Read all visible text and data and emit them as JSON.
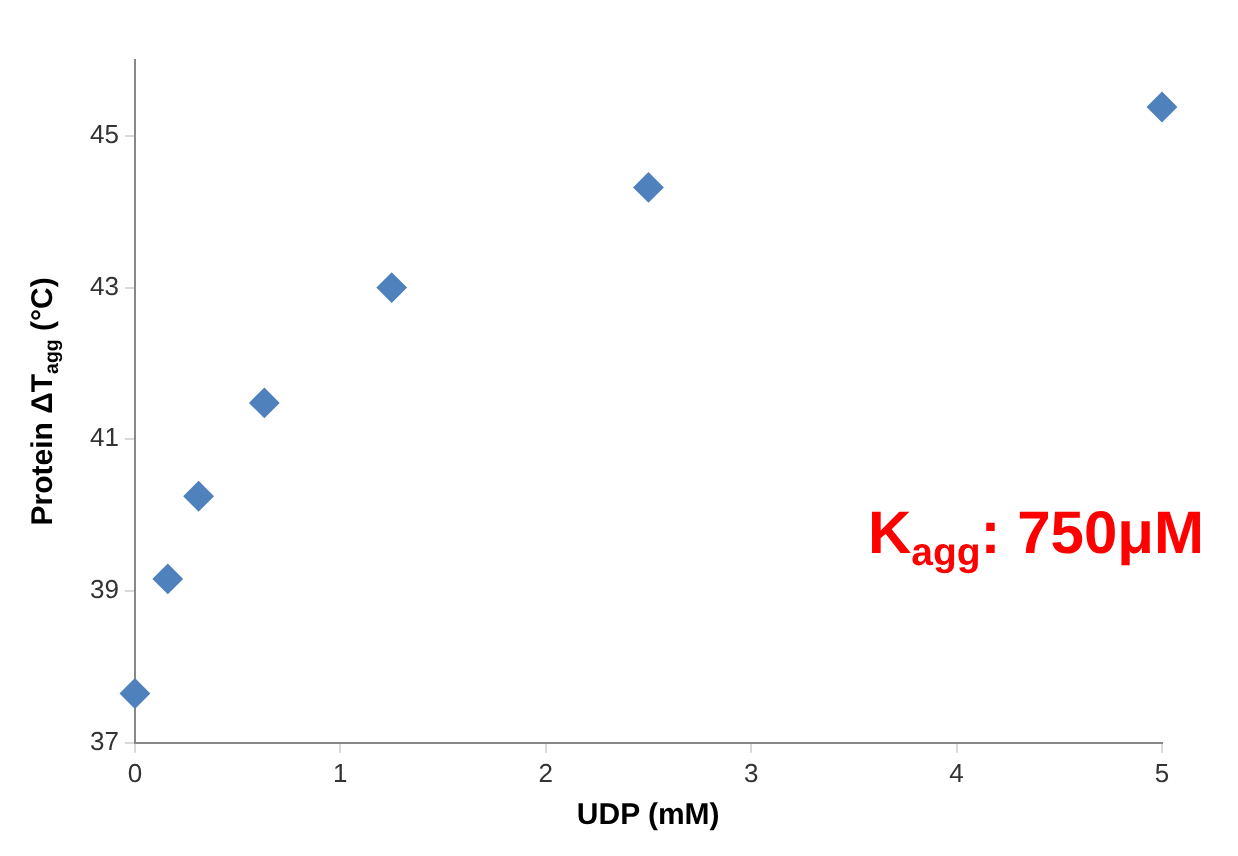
{
  "chart_data": {
    "type": "scatter",
    "xlabel": "UDP (mM)",
    "ylabel": "Protein ΔT$_{agg}$ (°C)",
    "x": [
      0,
      0.16,
      0.31,
      0.63,
      1.25,
      2.5,
      5
    ],
    "series": [
      {
        "color": "#4f81bd",
        "values": [
          37.65,
          39.16,
          40.25,
          41.48,
          43.0,
          44.32,
          45.38
        ]
      }
    ],
    "xlim": [
      0,
      5
    ],
    "xticks": [
      0,
      1,
      2,
      3,
      4,
      5
    ],
    "ylim": [
      37,
      46
    ],
    "yticks": [
      37,
      39,
      41,
      43,
      45
    ],
    "marker": "diamond",
    "grid": false,
    "legend": false,
    "annotations": [
      "K$_{agg}$: 750μM"
    ]
  }
}
